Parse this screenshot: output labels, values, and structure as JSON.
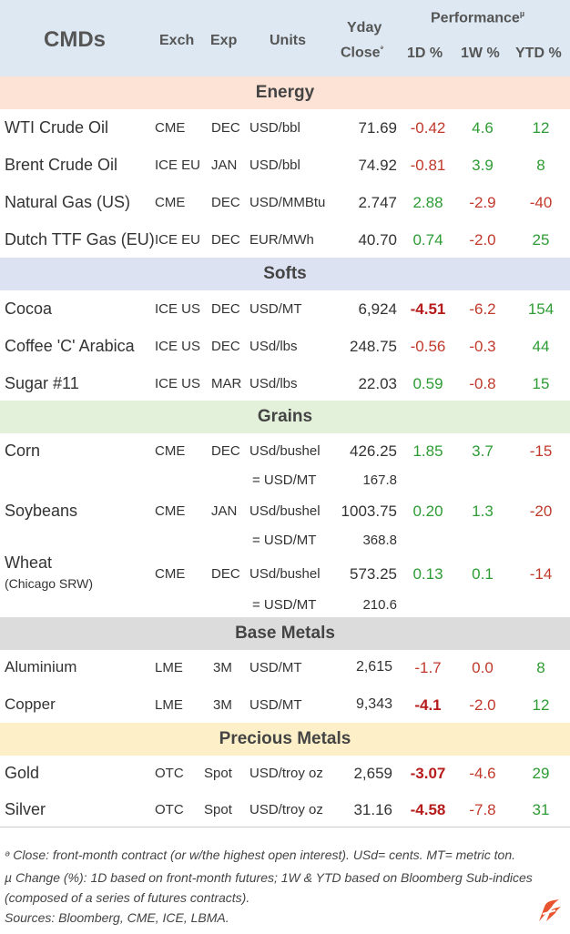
{
  "header": {
    "title": "CMDs",
    "exch": "Exch",
    "exp": "Exp",
    "units": "Units",
    "yday_line1": "Yday",
    "yday_line2": "Close",
    "yday_sup": "ᵊ",
    "performance": "Performance",
    "performance_sup": "µ",
    "d1": "1D %",
    "w1": "1W %",
    "ytd": "YTD %"
  },
  "colors": {
    "header_bg": "#dde8f2",
    "energy_bg": "#fce3d6",
    "softs_bg": "#dde2f2",
    "grains_bg": "#e3f0da",
    "base_bg": "#dcdcdc",
    "precious_bg": "#fdf0c9",
    "positive": "#2e9c34",
    "negative": "#c0392b",
    "logo": "#e8542f"
  },
  "sections": {
    "energy": "Energy",
    "softs": "Softs",
    "grains": "Grains",
    "base": "Base Metals",
    "precious": "Precious Metals"
  },
  "rows": {
    "wti": {
      "name": "WTI Crude Oil",
      "exch": "CME",
      "exp": "DEC",
      "units": "USD/bbl",
      "close": "71.69",
      "d1": "-0.42",
      "w1": "4.6",
      "ytd": "12"
    },
    "brent": {
      "name": "Brent Crude Oil",
      "exch": "ICE EU",
      "exp": "JAN",
      "units": "USD/bbl",
      "close": "74.92",
      "d1": "-0.81",
      "w1": "3.9",
      "ytd": "8"
    },
    "natgas": {
      "name": "Natural Gas (US)",
      "exch": "CME",
      "exp": "DEC",
      "units": "USD/MMBtu",
      "close": "2.747",
      "d1": "2.88",
      "w1": "-2.9",
      "ytd": "-40"
    },
    "ttf": {
      "name": "Dutch TTF Gas (EU)",
      "exch": "ICE EU",
      "exp": "DEC",
      "units": "EUR/MWh",
      "close": "40.70",
      "d1": "0.74",
      "w1": "-2.0",
      "ytd": "25"
    },
    "cocoa": {
      "name": "Cocoa",
      "exch": "ICE US",
      "exp": "DEC",
      "units": "USD/MT",
      "close": "6,924",
      "d1": "-4.51",
      "w1": "-6.2",
      "ytd": "154"
    },
    "coffee": {
      "name": "Coffee 'C' Arabica",
      "exch": "ICE US",
      "exp": "DEC",
      "units": "USd/lbs",
      "close": "248.75",
      "d1": "-0.56",
      "w1": "-0.3",
      "ytd": "44"
    },
    "sugar": {
      "name": "Sugar #11",
      "exch": "ICE US",
      "exp": "MAR",
      "units": "USd/lbs",
      "close": "22.03",
      "d1": "0.59",
      "w1": "-0.8",
      "ytd": "15"
    },
    "corn": {
      "name": "Corn",
      "exch": "CME",
      "exp": "DEC",
      "units": "USd/bushel",
      "close": "426.25",
      "d1": "1.85",
      "w1": "3.7",
      "ytd": "-15",
      "conv_units": "= USD/MT",
      "conv_val": "167.8"
    },
    "soy": {
      "name": "Soybeans",
      "exch": "CME",
      "exp": "JAN",
      "units": "USd/bushel",
      "close": "1003.75",
      "d1": "0.20",
      "w1": "1.3",
      "ytd": "-20",
      "conv_units": "= USD/MT",
      "conv_val": "368.8"
    },
    "wheat": {
      "name": "Wheat",
      "subname": "(Chicago SRW)",
      "exch": "CME",
      "exp": "DEC",
      "units": "USd/bushel",
      "close": "573.25",
      "d1": "0.13",
      "w1": "0.1",
      "ytd": "-14",
      "conv_units": "= USD/MT",
      "conv_val": "210.6"
    },
    "alu": {
      "name": "Aluminium",
      "exch": "LME",
      "exp": "3M",
      "units": "USD/MT",
      "close": "2,615",
      "d1": "-1.7",
      "w1": "0.0",
      "ytd": "8"
    },
    "copper": {
      "name": "Copper",
      "exch": "LME",
      "exp": "3M",
      "units": "USD/MT",
      "close": "9,343",
      "d1": "-4.1",
      "w1": "-2.0",
      "ytd": "12"
    },
    "gold": {
      "name": "Gold",
      "exch": "OTC",
      "exp": "Spot",
      "units": "USD/troy oz",
      "close": "2,659",
      "d1": "-3.07",
      "w1": "-4.6",
      "ytd": "29"
    },
    "silver": {
      "name": "Silver",
      "exch": "OTC",
      "exp": "Spot",
      "units": "USD/troy oz",
      "close": "31.16",
      "d1": "-4.58",
      "w1": "-7.8",
      "ytd": "31"
    }
  },
  "footer": {
    "note1": "ᵊ Close: front-month contract (or w/the highest open interest). USd= cents. MT= metric ton.",
    "note2": "µ Change (%): 1D based on front-month futures; 1W & YTD based on Bloomberg Sub-indices",
    "note3": "(composed of a series of futures contracts).",
    "sources": "Sources: Bloomberg, CME, ICE, LBMA."
  }
}
